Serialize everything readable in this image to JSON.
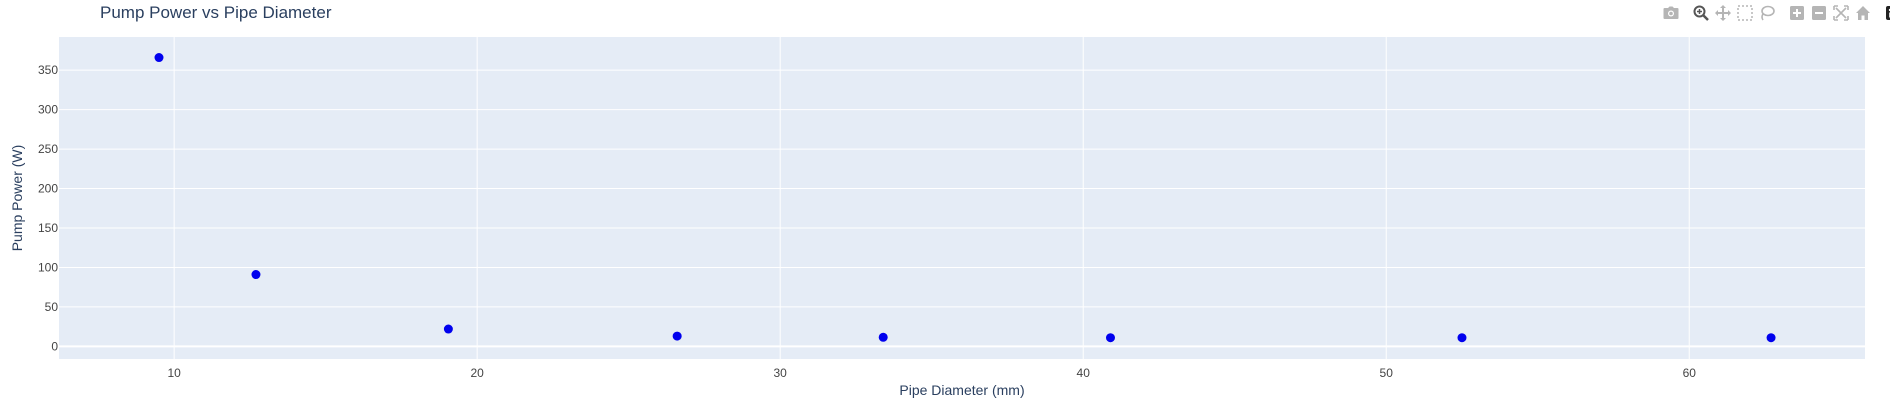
{
  "chart_data": {
    "type": "scatter",
    "title": "Pump Power vs Pipe Diameter",
    "xlabel": "Pipe Diameter (mm)",
    "ylabel": "Pump Power (W)",
    "xlim": [
      6.2,
      65.8
    ],
    "ylim": [
      -16,
      392
    ],
    "xticks": [
      10,
      20,
      30,
      40,
      50,
      60
    ],
    "yticks": [
      0,
      50,
      100,
      150,
      200,
      250,
      300,
      350
    ],
    "grid": true,
    "legend": "none",
    "marker_color": "#0000ee",
    "plot_background": "#e5ecf6",
    "x": [
      9.5,
      12.7,
      19.05,
      26.6,
      33.4,
      40.9,
      52.5,
      62.7
    ],
    "y": [
      366,
      91,
      22,
      13,
      11.5,
      11,
      11,
      11
    ]
  },
  "modebar": {
    "buttons": [
      {
        "name": "camera-icon",
        "group": 0
      },
      {
        "name": "zoom-icon",
        "group": 1
      },
      {
        "name": "pan-icon",
        "group": 1
      },
      {
        "name": "box-select-icon",
        "group": 1
      },
      {
        "name": "lasso-select-icon",
        "group": 1
      },
      {
        "name": "zoom-in-icon",
        "group": 2
      },
      {
        "name": "zoom-out-icon",
        "group": 2
      },
      {
        "name": "autoscale-icon",
        "group": 2
      },
      {
        "name": "home-icon",
        "group": 2
      },
      {
        "name": "plotly-logo-icon",
        "group": 3
      }
    ]
  }
}
